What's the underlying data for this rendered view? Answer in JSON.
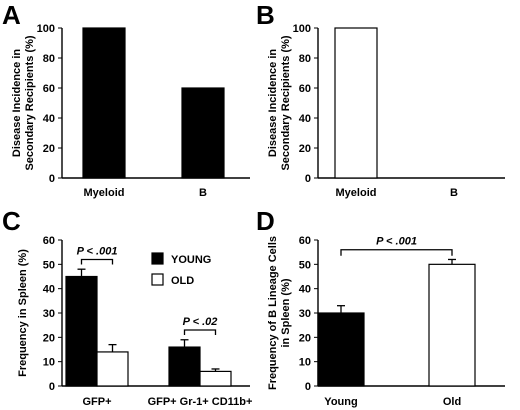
{
  "panels": {
    "A": {
      "letter": "A"
    },
    "B": {
      "letter": "B"
    },
    "C": {
      "letter": "C"
    },
    "D": {
      "letter": "D"
    }
  },
  "chart_data": [
    {
      "panel": "A",
      "type": "bar",
      "categories": [
        "Myeloid",
        "B"
      ],
      "values": [
        100,
        60
      ],
      "bar_color": "#000000",
      "ylabel": [
        "Disease Incidence in",
        "Secondary Recipients (%)"
      ],
      "ylim": [
        0,
        100
      ],
      "yticks": [
        0,
        20,
        40,
        60,
        80,
        100
      ],
      "grid": false
    },
    {
      "panel": "B",
      "type": "bar",
      "categories": [
        "Myeloid",
        "B"
      ],
      "values": [
        100,
        0
      ],
      "bar_color": "#ffffff",
      "ylabel": [
        "Disease Incidence in",
        "Secondary Recipients (%)"
      ],
      "ylim": [
        0,
        100
      ],
      "yticks": [
        0,
        20,
        40,
        60,
        80,
        100
      ],
      "grid": false
    },
    {
      "panel": "C",
      "type": "bar",
      "categories": [
        "GFP+",
        "GFP+ Gr-1+ CD11b+"
      ],
      "series": [
        {
          "name": "YOUNG",
          "color": "#000000",
          "values": [
            45,
            16
          ],
          "errors": [
            3,
            3
          ]
        },
        {
          "name": "OLD",
          "color": "#ffffff",
          "values": [
            14,
            6
          ],
          "errors": [
            3,
            1
          ]
        }
      ],
      "ylabel": [
        "Frequency in Spleen (%)"
      ],
      "ylim": [
        0,
        60
      ],
      "yticks": [
        0,
        10,
        20,
        30,
        40,
        50,
        60
      ],
      "legend": "top-right",
      "annotations": [
        {
          "category": 0,
          "text": "P < .001"
        },
        {
          "category": 1,
          "text": "P < .02"
        }
      ],
      "grid": false
    },
    {
      "panel": "D",
      "type": "bar",
      "categories": [
        "Young",
        "Old"
      ],
      "values": [
        30,
        50
      ],
      "errors": [
        3,
        2
      ],
      "bar_colors": [
        "#000000",
        "#ffffff"
      ],
      "ylabel": [
        "Frequency of B Lineage Cells",
        "in Spleen (%)"
      ],
      "ylim": [
        0,
        60
      ],
      "yticks": [
        0,
        10,
        20,
        30,
        40,
        50,
        60
      ],
      "annotations": [
        {
          "text": "P < .001"
        }
      ],
      "grid": false
    }
  ]
}
